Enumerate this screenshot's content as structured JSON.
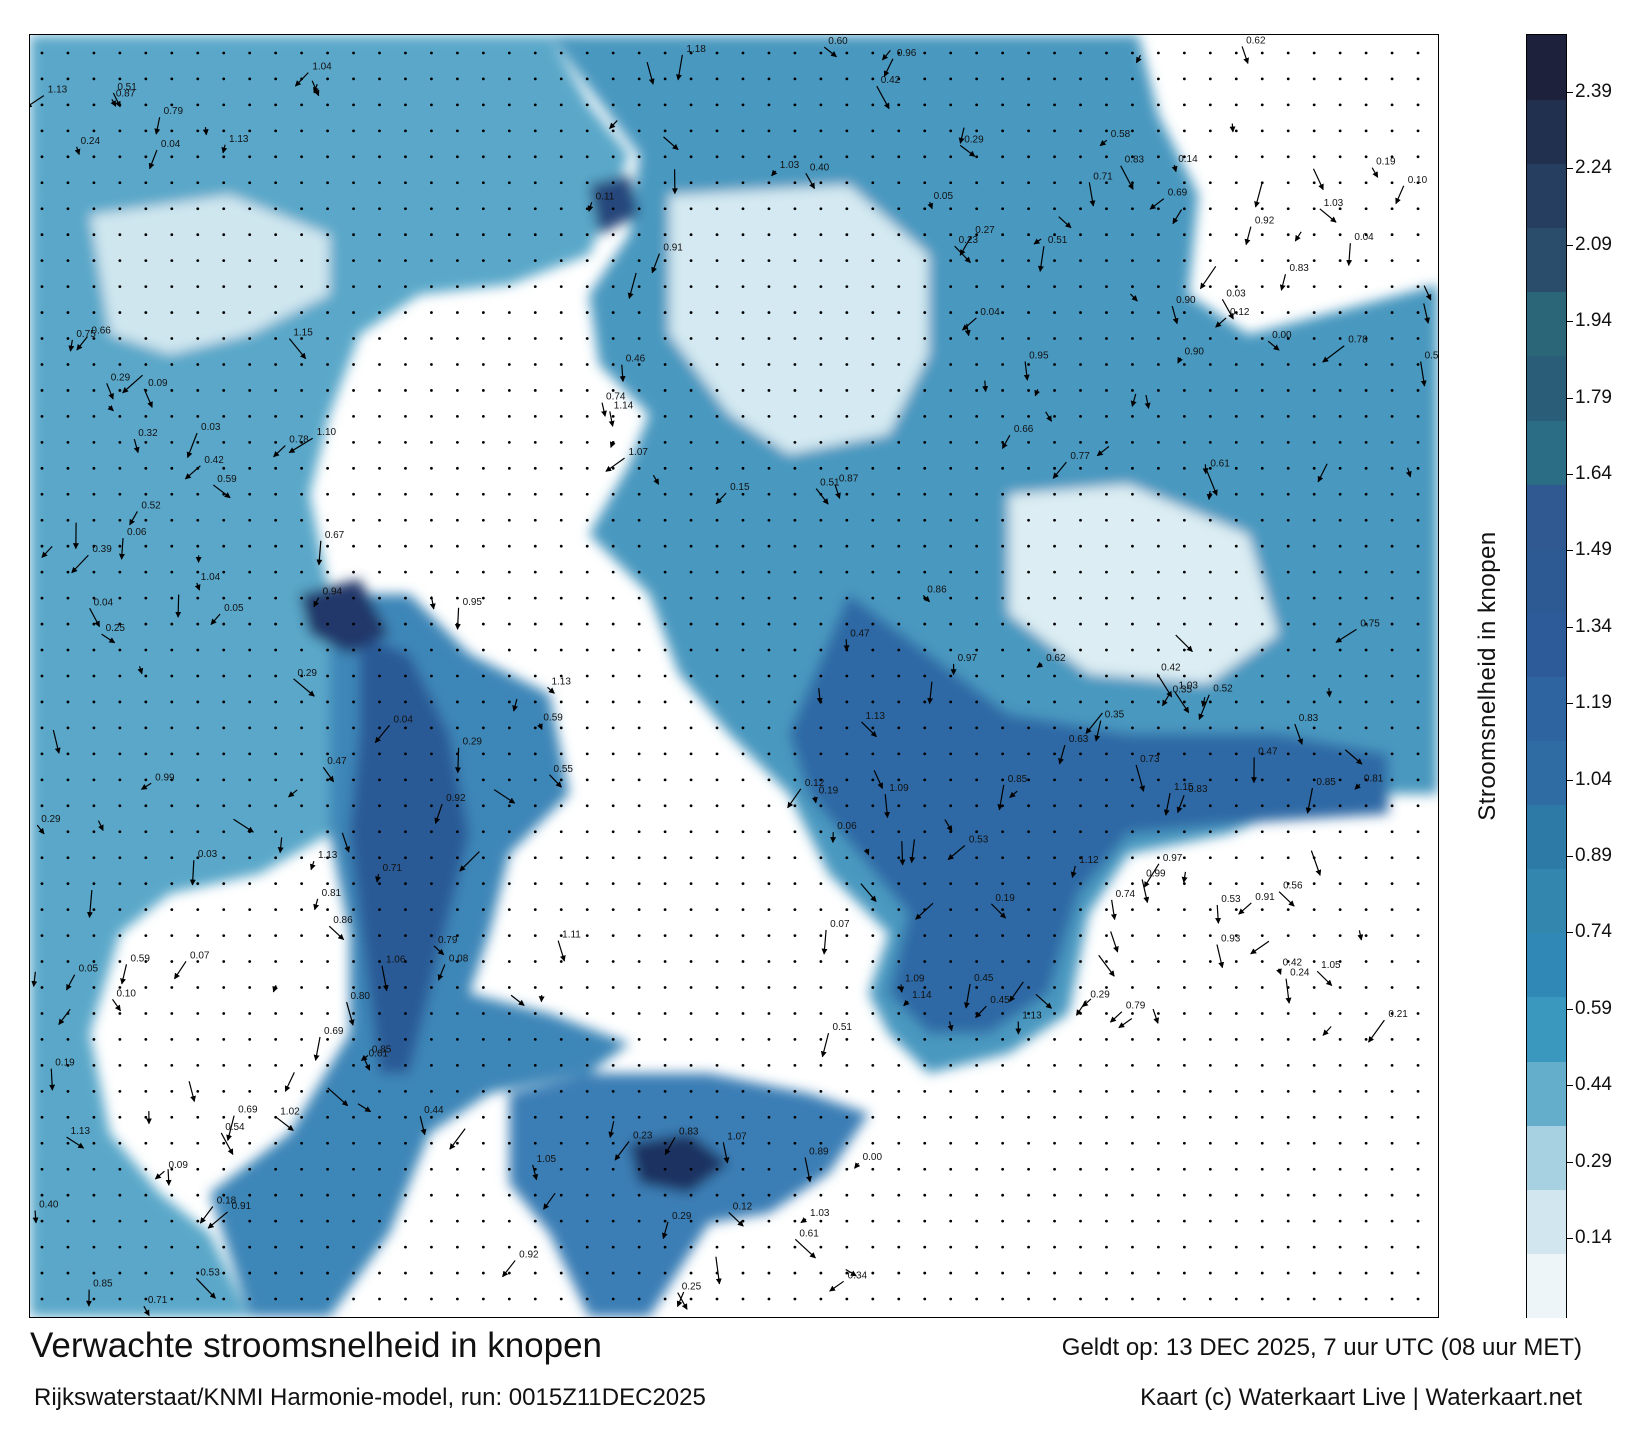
{
  "map": {
    "title": "Verwachte stroomsnelheid in knopen",
    "subtitle": "Rijkswaterstaat/KNMI Harmonie-model, run: 0015Z11DEC2025",
    "valid_time": "Geldt op: 13 DEC 2025, 7 uur UTC (08 uur MET)",
    "credit": "Kaart (c) Waterkaart Live | Waterkaart.net",
    "colorbar_label": "Stroomsnelheid in knopen",
    "colorbar_ticks": [
      "0.14",
      "0.29",
      "0.44",
      "0.59",
      "0.74",
      "0.89",
      "1.04",
      "1.19",
      "1.34",
      "1.49",
      "1.64",
      "1.79",
      "1.94",
      "2.09",
      "2.24",
      "2.39"
    ],
    "colorbar_colors": [
      "#eef5f8",
      "#d1e6ee",
      "#a7d1e1",
      "#64aecb",
      "#3a97be",
      "#2f88b6",
      "#3386ad",
      "#2e7aa6",
      "#2e6ca3",
      "#2e64a0",
      "#2d5b99",
      "#2e5a94",
      "#2f5990",
      "#2b6d84",
      "#2a5d77",
      "#2b6578",
      "#2a4d6b",
      "#263f60",
      "#22304f",
      "#1d213c"
    ],
    "water_colors": {
      "light": "#c5e1ec",
      "mid": "#4f9fc4",
      "deep": "#2e67a3",
      "darkest": "#1e2c52",
      "land": "#ffffff"
    }
  }
}
